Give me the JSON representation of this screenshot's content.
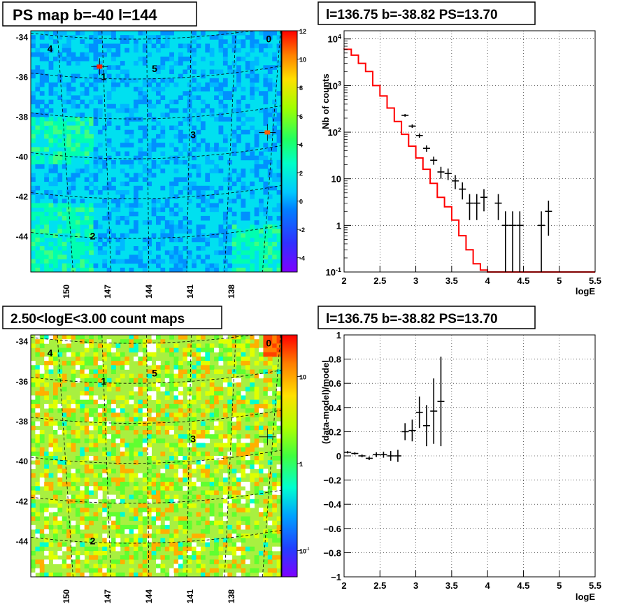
{
  "chart_data": [
    {
      "id": "ps_map",
      "type": "heatmap",
      "title": "PS map b=-40 l=144",
      "x_ticks": [
        "150",
        "147",
        "144",
        "141",
        "138"
      ],
      "y_ticks": [
        "-34",
        "-36",
        "-38",
        "-40",
        "-42",
        "-44"
      ],
      "xlim": [
        152.5,
        134.3
      ],
      "ylim": [
        -45.8,
        -33.7
      ],
      "colorbar": {
        "scale": "linear",
        "range": [
          -5,
          12
        ],
        "ticks": [
          "12",
          "10",
          "8",
          "6",
          "4",
          "2",
          "0",
          "-2",
          "-4"
        ],
        "tick_values": [
          12,
          10,
          8,
          6,
          4,
          2,
          0,
          -2,
          -4
        ]
      },
      "sources": [
        {
          "label": "0",
          "l": 135.2,
          "b": -34.1
        },
        {
          "label": "1",
          "l": 147.2,
          "b": -36.0
        },
        {
          "label": "2",
          "l": 148.0,
          "b": -44.0
        },
        {
          "label": "3",
          "l": 140.7,
          "b": -38.9
        },
        {
          "label": "4",
          "l": 151.1,
          "b": -34.6
        },
        {
          "label": "5",
          "l": 143.5,
          "b": -35.6
        }
      ],
      "crosses": [
        {
          "l": 147.5,
          "b": -35.5
        },
        {
          "l": 135.3,
          "b": -38.8
        }
      ]
    },
    {
      "id": "spectrum",
      "type": "line",
      "title": "l=136.75 b=-38.82 PS=13.70",
      "xlabel": "logE",
      "ylabel": "Nb of counts",
      "xlim": [
        2,
        5.5
      ],
      "ylim": [
        0.1,
        15000
      ],
      "yscale": "log",
      "grid": true,
      "x_ticks": [
        "2",
        "2.5",
        "3",
        "3.5",
        "4",
        "4.5",
        "5",
        "5.5"
      ],
      "y_ticks": [
        "10^-1",
        "1",
        "10",
        "10^2",
        "10^3",
        "10^4"
      ],
      "model_step": {
        "edges": [
          2.0,
          2.1,
          2.2,
          2.3,
          2.4,
          2.5,
          2.6,
          2.7,
          2.8,
          2.9,
          3.0,
          3.1,
          3.2,
          3.3,
          3.4,
          3.5,
          3.6,
          3.7,
          3.8,
          3.9,
          4.0,
          5.5
        ],
        "values": [
          6000,
          4500,
          3000,
          2000,
          1000,
          600,
          330,
          170,
          90,
          50,
          28,
          16,
          8,
          4,
          2.5,
          1.3,
          0.6,
          0.3,
          0.15,
          0.11,
          0.1
        ]
      },
      "data_points": [
        {
          "x": 2.85,
          "y": 230,
          "err": 15
        },
        {
          "x": 2.95,
          "y": 135,
          "err": 12
        },
        {
          "x": 3.05,
          "y": 85,
          "err": 9
        },
        {
          "x": 3.15,
          "y": 45,
          "err": 7
        },
        {
          "x": 3.25,
          "y": 25,
          "err": 5
        },
        {
          "x": 3.35,
          "y": 14,
          "err": 4
        },
        {
          "x": 3.45,
          "y": 13,
          "err": 3.6
        },
        {
          "x": 3.55,
          "y": 9,
          "err": 3
        },
        {
          "x": 3.65,
          "y": 6,
          "err": 2.4
        },
        {
          "x": 3.75,
          "y": 3,
          "err": 1.7
        },
        {
          "x": 3.85,
          "y": 3,
          "err": 1.7
        },
        {
          "x": 3.95,
          "y": 4,
          "err": 2
        },
        {
          "x": 4.15,
          "y": 3,
          "err": 1.7
        },
        {
          "x": 4.25,
          "y": 1,
          "err": 1
        },
        {
          "x": 4.35,
          "y": 1,
          "err": 1
        },
        {
          "x": 4.45,
          "y": 1,
          "err": 1
        },
        {
          "x": 4.75,
          "y": 1,
          "err": 1
        },
        {
          "x": 4.85,
          "y": 2,
          "err": 1.4
        }
      ]
    },
    {
      "id": "count_map",
      "type": "heatmap",
      "title": "2.50<logE<3.00 count maps",
      "x_ticks": [
        "150",
        "147",
        "144",
        "141",
        "138"
      ],
      "y_ticks": [
        "-34",
        "-36",
        "-38",
        "-40",
        "-42",
        "-44"
      ],
      "xlim": [
        152.5,
        134.3
      ],
      "ylim": [
        -45.8,
        -33.7
      ],
      "colorbar": {
        "scale": "log",
        "range": [
          0.05,
          30
        ],
        "ticks": [
          "10",
          "1",
          "10^-1"
        ],
        "tick_values": [
          10,
          1,
          0.1
        ]
      },
      "sources": [
        {
          "label": "0",
          "l": 135.2,
          "b": -34.1
        },
        {
          "label": "1",
          "l": 147.2,
          "b": -36.0
        },
        {
          "label": "2",
          "l": 148.0,
          "b": -44.0
        },
        {
          "label": "3",
          "l": 140.7,
          "b": -38.9
        },
        {
          "label": "4",
          "l": 151.1,
          "b": -34.6
        },
        {
          "label": "5",
          "l": 143.5,
          "b": -35.6
        }
      ],
      "crosses": [
        {
          "l": 135.3,
          "b": -38.8
        }
      ]
    },
    {
      "id": "residual",
      "type": "scatter",
      "title": "l=136.75 b=-38.82 PS=13.70",
      "xlabel": "logE",
      "ylabel": "(data-model)/model",
      "xlim": [
        2,
        5.5
      ],
      "ylim": [
        -1,
        1
      ],
      "grid": true,
      "x_ticks": [
        "2",
        "2.5",
        "3",
        "3.5",
        "4",
        "4.5",
        "5",
        "5.5"
      ],
      "y_ticks": [
        "1",
        "0.8",
        "0.6",
        "0.4",
        "0.2",
        "0",
        "−0.2",
        "−0.4",
        "−0.6",
        "−0.8",
        "−1"
      ],
      "data_points": [
        {
          "x": 2.05,
          "y": 0.03,
          "err": 0.01
        },
        {
          "x": 2.15,
          "y": 0.02,
          "err": 0.01
        },
        {
          "x": 2.25,
          "y": 0.0,
          "err": 0.012
        },
        {
          "x": 2.35,
          "y": -0.02,
          "err": 0.015
        },
        {
          "x": 2.45,
          "y": 0.01,
          "err": 0.02
        },
        {
          "x": 2.55,
          "y": 0.01,
          "err": 0.025
        },
        {
          "x": 2.65,
          "y": 0.0,
          "err": 0.04
        },
        {
          "x": 2.75,
          "y": 0.0,
          "err": 0.05
        },
        {
          "x": 2.85,
          "y": 0.2,
          "err": 0.07
        },
        {
          "x": 2.95,
          "y": 0.21,
          "err": 0.09
        },
        {
          "x": 3.05,
          "y": 0.36,
          "err": 0.13
        },
        {
          "x": 3.15,
          "y": 0.25,
          "err": 0.17
        },
        {
          "x": 3.25,
          "y": 0.37,
          "err": 0.27
        },
        {
          "x": 3.35,
          "y": 0.45,
          "err": 0.37
        }
      ]
    }
  ]
}
